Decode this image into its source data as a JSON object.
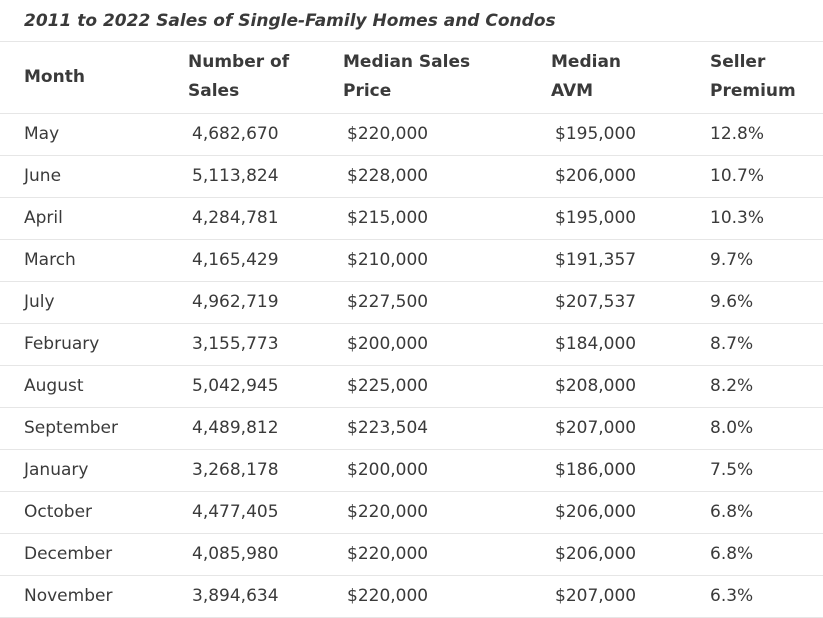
{
  "caption": "2011 to 2022 Sales of Single-Family Homes and Condos",
  "headers": {
    "month": "Month",
    "sales_line1": "Number of",
    "sales_line2": "Sales",
    "price_line1": "Median Sales",
    "price_line2": "Price",
    "avm_line1": "Median",
    "avm_line2": "AVM",
    "premium_line1": "Seller",
    "premium_line2": "Premium"
  },
  "rows": [
    {
      "month": "May",
      "sales": "4,682,670",
      "price": "$220,000",
      "avm": "$195,000",
      "premium": "12.8%"
    },
    {
      "month": "June",
      "sales": "5,113,824",
      "price": "$228,000",
      "avm": "$206,000",
      "premium": "10.7%"
    },
    {
      "month": "April",
      "sales": "4,284,781",
      "price": "$215,000",
      "avm": "$195,000",
      "premium": "10.3%"
    },
    {
      "month": "March",
      "sales": "4,165,429",
      "price": "$210,000",
      "avm": "$191,357",
      "premium": "9.7%"
    },
    {
      "month": "July",
      "sales": "4,962,719",
      "price": "$227,500",
      "avm": "$207,537",
      "premium": "9.6%"
    },
    {
      "month": "February",
      "sales": "3,155,773",
      "price": "$200,000",
      "avm": "$184,000",
      "premium": "8.7%"
    },
    {
      "month": "August",
      "sales": "5,042,945",
      "price": "$225,000",
      "avm": "$208,000",
      "premium": "8.2%"
    },
    {
      "month": "September",
      "sales": "4,489,812",
      "price": "$223,504",
      "avm": "$207,000",
      "premium": "8.0%"
    },
    {
      "month": "January",
      "sales": "3,268,178",
      "price": "$200,000",
      "avm": "$186,000",
      "premium": "7.5%"
    },
    {
      "month": "October",
      "sales": "4,477,405",
      "price": "$220,000",
      "avm": "$206,000",
      "premium": "6.8%"
    },
    {
      "month": "December",
      "sales": "4,085,980",
      "price": "$220,000",
      "avm": "$206,000",
      "premium": "6.8%"
    },
    {
      "month": "November",
      "sales": "3,894,634",
      "price": "$220,000",
      "avm": "$207,000",
      "premium": "6.3%"
    }
  ]
}
